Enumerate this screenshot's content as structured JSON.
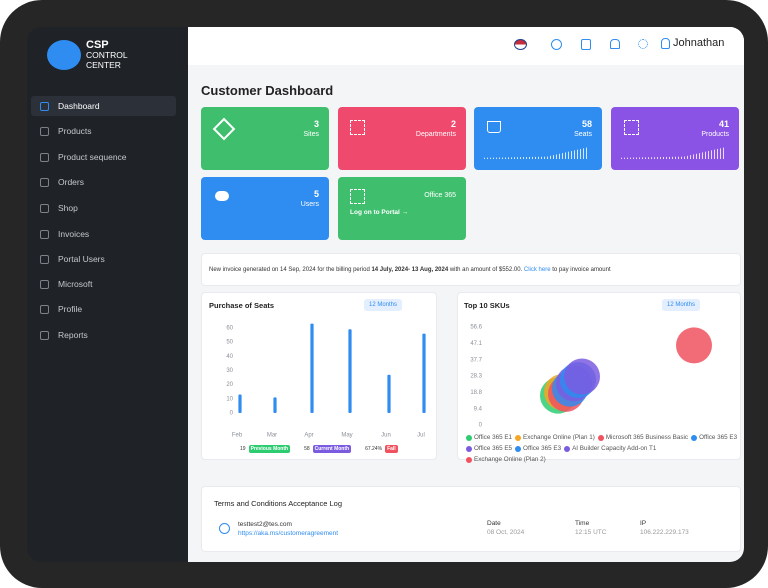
{
  "brand": {
    "line1": "CSP",
    "line2": "CONTROL",
    "line3": "CENTER"
  },
  "sidebar": {
    "items": [
      "Dashboard",
      "Products",
      "Product sequence",
      "Orders",
      "Shop",
      "Invoices",
      "Portal Users",
      "Microsoft",
      "Profile",
      "Reports"
    ]
  },
  "header": {
    "user": "Johnathan"
  },
  "page_title": "Customer Dashboard",
  "cards": [
    {
      "value": 3,
      "label": "Sites"
    },
    {
      "value": 2,
      "label": "Departments"
    },
    {
      "value": 58,
      "label": "Seats"
    },
    {
      "value": 41,
      "label": "Products"
    },
    {
      "value": 5,
      "label": "Users"
    },
    {
      "label": "Office 365",
      "link": "Log on to Portal →"
    }
  ],
  "notice": {
    "text1": "New invoice generated on 14 Sep, 2024 for the billing period ",
    "period": "14 July, 2024- 13 Aug, 2024",
    "text2": " with an amount of $552.00. ",
    "link": "Click here",
    "text3": " to pay invoice amount"
  },
  "seats_chart": {
    "type": "bar",
    "title": "Purchase of Seats",
    "filter": "12 Months",
    "categories": [
      "Feb",
      "Mar",
      "Apr",
      "May",
      "Jun",
      "Jul"
    ],
    "values": [
      13,
      11,
      63,
      59,
      27,
      56
    ],
    "color": "#2f8cf0",
    "ylim": [
      0,
      65
    ],
    "yticks": [
      0,
      10,
      20,
      30,
      40,
      50,
      60
    ],
    "summary": [
      {
        "value": "19",
        "label": "Previous Month",
        "color": "#2ecc71"
      },
      {
        "value": "58",
        "label": "Current Month",
        "color": "#7b5ce0"
      },
      {
        "value": "67.24%",
        "label": "Fall",
        "color": "#f0525f"
      }
    ]
  },
  "sku_chart": {
    "type": "bubble",
    "title": "Top 10 SKUs",
    "filter": "12 Months",
    "series": [
      {
        "name": "Office 365 E1",
        "color": "#2ecc71",
        "values": [
          17
        ]
      },
      {
        "name": "Exchange Online (Plan 1)",
        "color": "#f5a623",
        "values": [
          19
        ]
      },
      {
        "name": "Microsoft 365 Business Basic",
        "color": "#f0525f",
        "values": [
          18
        ]
      },
      {
        "name": "Office 365 E3",
        "color": "#2f8cf0",
        "values": [
          21
        ]
      },
      {
        "name": "Office 365 E5",
        "color": "#7b5ce0",
        "values": [
          24
        ]
      },
      {
        "name": "Office 365 E3",
        "color": "#2f8cf0",
        "values": [
          26
        ]
      },
      {
        "name": "AI Builder Capacity Add-on T1",
        "color": "#7b5ce0",
        "values": [
          28
        ]
      },
      {
        "name": "Exchange Online (Plan 2)",
        "color": "#f0525f",
        "values": [
          46
        ]
      }
    ],
    "ylim": [
      0,
      56.6
    ],
    "yticks": [
      0,
      9.4,
      18.8,
      28.3,
      37.7,
      47.1,
      56.6
    ]
  },
  "terms": {
    "title": "Terms and Conditions Acceptance Log",
    "email": "testtest2@tes.com",
    "link": "https://aka.ms/customeragreement",
    "date_label": "Date",
    "date": "08 Oct, 2024",
    "time_label": "Time",
    "time": "12:15 UTC",
    "ip_label": "IP",
    "ip": "106.222.229.173"
  }
}
